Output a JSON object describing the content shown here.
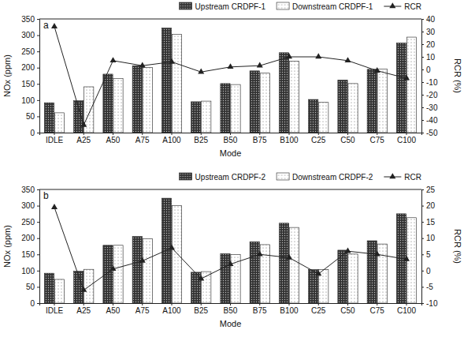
{
  "chart_data": [
    {
      "type": "bar",
      "panel_label": "a",
      "x_label": "Mode",
      "y_label": "NOx (ppm)",
      "y2_label": "RCR (%)",
      "categories": [
        "IDLE",
        "A25",
        "A50",
        "A75",
        "A100",
        "B25",
        "B50",
        "B75",
        "B100",
        "C25",
        "C50",
        "C75",
        "C100"
      ],
      "series": [
        {
          "name": "Upstream CRDPF-1",
          "color": "#333333",
          "values": [
            92,
            98,
            180,
            206,
            322,
            95,
            151,
            190,
            246,
            102,
            162,
            195,
            276
          ]
        },
        {
          "name": "Downstream CRDPF-1",
          "color": "#ffffff",
          "values": [
            61,
            141,
            167,
            201,
            303,
            97,
            148,
            183,
            220,
            93,
            151,
            196,
            294
          ]
        },
        {
          "name": "RCR",
          "type": "line",
          "axis": "y2",
          "color": "#222222",
          "marker": "triangle",
          "values": [
            34,
            -44,
            7,
            3,
            6,
            -2,
            2,
            3,
            10,
            10,
            7,
            -1,
            -7
          ]
        }
      ],
      "ylim": [
        0,
        350
      ],
      "yticks": [
        0,
        50,
        100,
        150,
        200,
        250,
        300,
        350
      ],
      "y2lim": [
        -50,
        40
      ],
      "y2ticks": [
        -50,
        -40,
        -30,
        -20,
        -10,
        0,
        10,
        20,
        30,
        40
      ],
      "grid": false
    },
    {
      "type": "bar",
      "panel_label": "b",
      "x_label": "Mode",
      "y_label": "NOx (ppm)",
      "y2_label": "RCR (%)",
      "categories": [
        "IDLE",
        "A25",
        "A50",
        "A75",
        "A100",
        "B25",
        "B50",
        "B75",
        "B100",
        "C25",
        "C50",
        "C75",
        "C100"
      ],
      "series": [
        {
          "name": "Upstream CRDPF-2",
          "color": "#333333",
          "values": [
            92,
            98,
            178,
            205,
            323,
            95,
            152,
            189,
            246,
            103,
            163,
            192,
            275
          ]
        },
        {
          "name": "Downstream CRDPF-2",
          "color": "#ffffff",
          "values": [
            73,
            104,
            178,
            198,
            300,
            97,
            149,
            180,
            233,
            103,
            151,
            182,
            263
          ]
        },
        {
          "name": "RCR",
          "type": "line",
          "axis": "y2",
          "color": "#222222",
          "marker": "triangle",
          "values": [
            19.5,
            -6,
            0.5,
            3,
            7,
            -2.5,
            2,
            5,
            4,
            -1,
            6,
            5,
            3.5
          ]
        }
      ],
      "ylim": [
        0,
        350
      ],
      "yticks": [
        0,
        50,
        100,
        150,
        200,
        250,
        300,
        350
      ],
      "y2lim": [
        -10,
        25
      ],
      "y2ticks": [
        -10,
        -5,
        0,
        5,
        10,
        15,
        20,
        25
      ],
      "grid": false
    }
  ]
}
